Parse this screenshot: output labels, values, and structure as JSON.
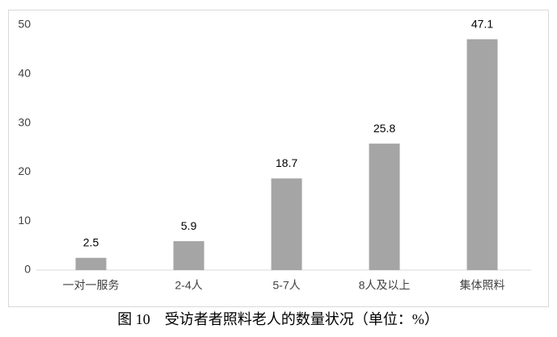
{
  "chart_data": {
    "type": "bar",
    "title": "图 10　受访者者照料老人的数量状况（单位：%）",
    "categories": [
      "一对一服务",
      "2-4人",
      "5-7人",
      "8人及以上",
      "集体照料"
    ],
    "values": [
      2.5,
      5.9,
      18.7,
      25.8,
      47.1
    ],
    "color": "#a5a5a5",
    "ylim": [
      0,
      50
    ],
    "yticks": [
      0,
      10,
      20,
      30,
      40,
      50
    ],
    "grid": false
  }
}
